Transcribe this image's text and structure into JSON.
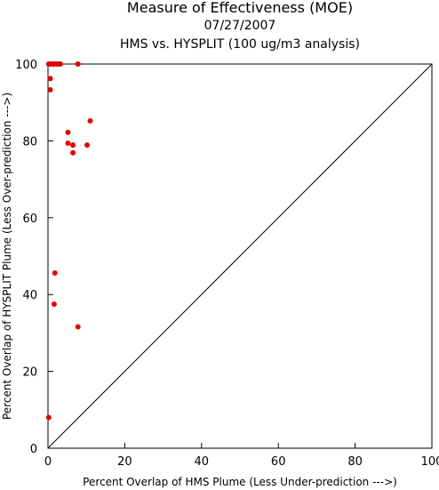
{
  "chart_data": {
    "type": "scatter",
    "title": "Measure of Effectiveness (MOE)",
    "subtitle_date": "07/27/2007",
    "subtitle_analysis": "HMS vs. HYSPLIT  (100 ug/m3 analysis)",
    "xlabel": "Percent Overlap of HMS Plume (Less Under-prediction --->)",
    "ylabel": "Percent Overlap of HYSPLIT Plume (Less Over-prediction --->)",
    "xlim": [
      0,
      100
    ],
    "ylim": [
      0,
      100
    ],
    "x_ticks": [
      0,
      20,
      40,
      60,
      80,
      100
    ],
    "y_ticks": [
      0,
      20,
      40,
      60,
      80,
      100
    ],
    "grid": false,
    "reference_line": "diagonal",
    "point_color": "#e00000",
    "points": [
      {
        "x": 0.2,
        "y": 100
      },
      {
        "x": 0.6,
        "y": 100
      },
      {
        "x": 1.2,
        "y": 100
      },
      {
        "x": 1.6,
        "y": 100
      },
      {
        "x": 2.3,
        "y": 100
      },
      {
        "x": 2.8,
        "y": 100
      },
      {
        "x": 3.2,
        "y": 100
      },
      {
        "x": 7.8,
        "y": 100
      },
      {
        "x": 0.6,
        "y": 96.2
      },
      {
        "x": 0.6,
        "y": 93.3
      },
      {
        "x": 11.0,
        "y": 85.2
      },
      {
        "x": 5.2,
        "y": 82.2
      },
      {
        "x": 5.2,
        "y": 79.4
      },
      {
        "x": 6.5,
        "y": 78.9
      },
      {
        "x": 10.2,
        "y": 78.9
      },
      {
        "x": 6.5,
        "y": 76.9
      },
      {
        "x": 1.8,
        "y": 45.6
      },
      {
        "x": 1.6,
        "y": 37.5
      },
      {
        "x": 7.8,
        "y": 31.6
      },
      {
        "x": 0.2,
        "y": 8.0
      }
    ]
  }
}
